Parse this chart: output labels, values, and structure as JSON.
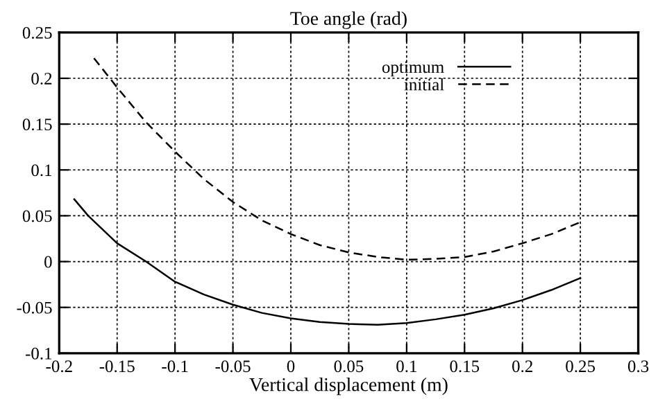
{
  "chart_data": {
    "type": "line",
    "title": "Toe angle (rad)",
    "xlabel": "Vertical displacement (m)",
    "series": [
      {
        "name": "optimum",
        "color": "#000000",
        "line_style": "solid",
        "x": [
          -0.187,
          -0.175,
          -0.15,
          -0.125,
          -0.1,
          -0.075,
          -0.05,
          -0.025,
          0,
          0.025,
          0.05,
          0.075,
          0.1,
          0.125,
          0.15,
          0.175,
          0.2,
          0.225,
          0.25
        ],
        "values": [
          0.068,
          0.05,
          0.02,
          0.0,
          -0.022,
          -0.036,
          -0.047,
          -0.056,
          -0.062,
          -0.066,
          -0.068,
          -0.069,
          -0.067,
          -0.063,
          -0.058,
          -0.051,
          -0.042,
          -0.031,
          -0.018
        ]
      },
      {
        "name": "initial",
        "color": "#000000",
        "line_style": "dashed",
        "x": [
          -0.17,
          -0.15,
          -0.125,
          -0.1,
          -0.075,
          -0.05,
          -0.025,
          0,
          0.025,
          0.05,
          0.075,
          0.1,
          0.125,
          0.15,
          0.175,
          0.2,
          0.225,
          0.25
        ],
        "values": [
          0.222,
          0.19,
          0.152,
          0.12,
          0.09,
          0.065,
          0.045,
          0.03,
          0.018,
          0.01,
          0.005,
          0.002,
          0.003,
          0.005,
          0.011,
          0.02,
          0.03,
          0.043
        ]
      }
    ],
    "xlim": [
      -0.2,
      0.3
    ],
    "ylim": [
      -0.1,
      0.25
    ],
    "xticks": [
      -0.2,
      -0.15,
      -0.1,
      -0.05,
      0,
      0.05,
      0.1,
      0.15,
      0.2,
      0.25,
      0.3
    ],
    "yticks": [
      -0.1,
      -0.05,
      0,
      0.05,
      0.1,
      0.15,
      0.2,
      0.25
    ],
    "grid": true,
    "legend": "top right",
    "marker": "none"
  }
}
